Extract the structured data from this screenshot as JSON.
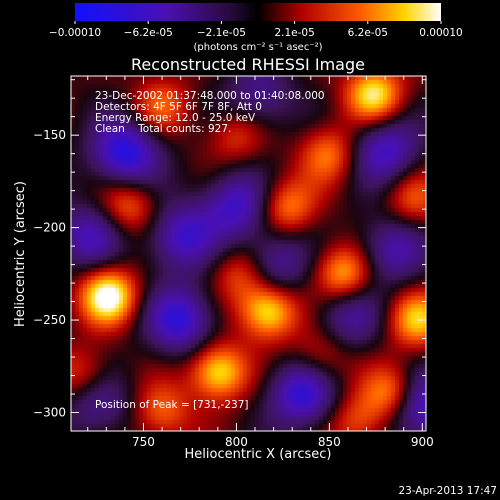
{
  "chart_data": {
    "type": "heatmap",
    "title": "Reconstructed RHESSI Image",
    "xlabel": "Heliocentric X (arcsec)",
    "ylabel": "Heliocentric Y (arcsec)",
    "xlim": [
      711,
      902
    ],
    "ylim": [
      -310,
      -118
    ],
    "x_ticks": [
      750,
      800,
      850,
      900
    ],
    "y_ticks": [
      -150,
      -200,
      -250,
      -300
    ],
    "colorbar": {
      "min": -0.0001,
      "max": 0.0001,
      "ticks": [
        "-0.00010",
        "-6.2e-05",
        "-2.1e-05",
        "2.1e-05",
        "6.2e-05",
        "0.00010"
      ],
      "unit_label": "(photons cm⁻² s⁻¹ asec⁻²)",
      "colormap": "blue-purple-red-yellow-white"
    },
    "annotations": {
      "time_range": "23-Dec-2002 01:37:48.000 to 01:40:08.000",
      "detectors": "Detectors: 4F 5F 6F 7F 8F, Att 0",
      "energy_range": "Energy Range: 12.0 - 25.0 keV",
      "clean_counts": "Clean    Total counts: 927.",
      "peak_position": "Position of Peak = [731,-237]"
    },
    "peak": {
      "x": 731,
      "y": -237
    },
    "sources": [
      {
        "x": 731,
        "y": -237,
        "amp": 1.0
      },
      {
        "x": 817,
        "y": -245,
        "amp": 0.92
      },
      {
        "x": 790,
        "y": -278,
        "amp": 0.88
      },
      {
        "x": 874,
        "y": -128,
        "amp": 0.85
      },
      {
        "x": 885,
        "y": -290,
        "amp": 0.8
      },
      {
        "x": 742,
        "y": -188,
        "amp": 0.55
      },
      {
        "x": 827,
        "y": -189,
        "amp": 0.6
      },
      {
        "x": 858,
        "y": -225,
        "amp": 0.75
      },
      {
        "x": 760,
        "y": -134,
        "amp": 0.45
      },
      {
        "x": 803,
        "y": -225,
        "amp": 0.5
      },
      {
        "x": 850,
        "y": -160,
        "amp": 0.55
      },
      {
        "x": 895,
        "y": -185,
        "amp": 0.45
      },
      {
        "x": 897,
        "y": -250,
        "amp": 0.7
      },
      {
        "x": 845,
        "y": -270,
        "amp": 0.4
      },
      {
        "x": 760,
        "y": -300,
        "amp": 0.5
      },
      {
        "x": 718,
        "y": -280,
        "amp": 0.45
      },
      {
        "x": 800,
        "y": -150,
        "amp": 0.4
      },
      {
        "x": 865,
        "y": -305,
        "amp": 0.45
      }
    ],
    "minima": [
      {
        "x": 740,
        "y": -160,
        "amp": -0.9
      },
      {
        "x": 770,
        "y": -205,
        "amp": -0.7
      },
      {
        "x": 770,
        "y": -250,
        "amp": -0.8
      },
      {
        "x": 800,
        "y": -188,
        "amp": -0.7
      },
      {
        "x": 820,
        "y": -220,
        "amp": -0.6
      },
      {
        "x": 835,
        "y": -290,
        "amp": -0.8
      },
      {
        "x": 880,
        "y": -158,
        "amp": -0.7
      },
      {
        "x": 883,
        "y": -212,
        "amp": -0.6
      },
      {
        "x": 860,
        "y": -248,
        "amp": -0.5
      },
      {
        "x": 898,
        "y": -296,
        "amp": -0.9
      },
      {
        "x": 720,
        "y": -205,
        "amp": -0.6
      },
      {
        "x": 725,
        "y": -295,
        "amp": -0.5
      },
      {
        "x": 812,
        "y": -130,
        "amp": -0.5
      }
    ]
  },
  "footer": {
    "date": "23-Apr-2013 17:47"
  }
}
